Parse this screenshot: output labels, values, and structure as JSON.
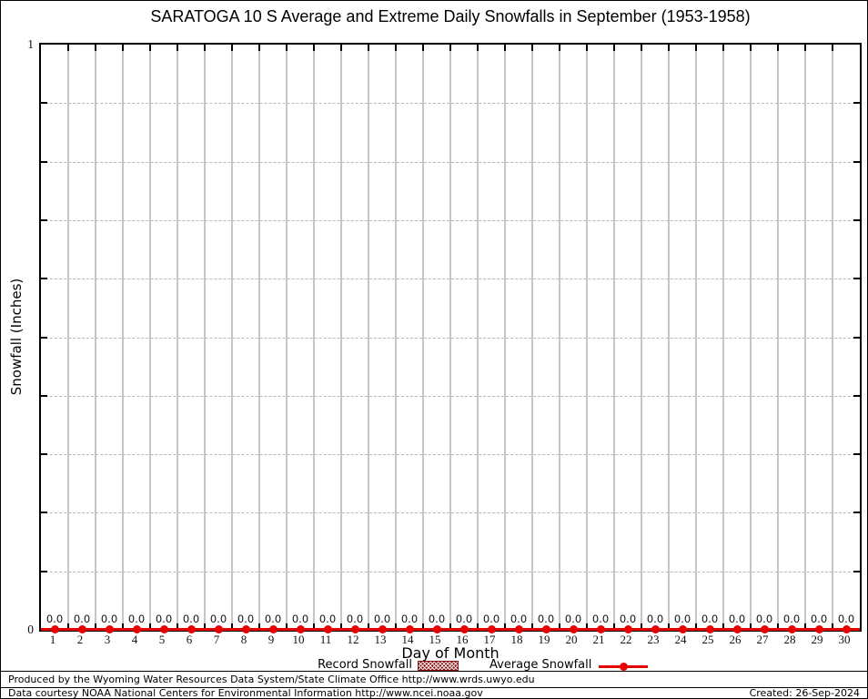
{
  "title": "SARATOGA 10 S Average and Extreme Daily Snowfalls in September (1953-1958)",
  "axis": {
    "y_top_label": "1",
    "y_bottom_label": "0"
  },
  "legend": {
    "record_label": "Record Snowfall",
    "average_label": "Average Snowfall"
  },
  "colors": {
    "average_line": "#e60000",
    "record_fill": "#8b1414",
    "grid_vertical": "#c6c6c6",
    "grid_horizontal": "#b8b8b8"
  },
  "footer": {
    "line1": "Produced by the Wyoming Water Resources Data System/State Climate Office http://www.wrds.uwyo.edu",
    "line2": "Data courtesy NOAA National Centers for Environmental Information http://www.ncei.noaa.gov",
    "created": "Created: 26-Sep-2024"
  },
  "chart_data": {
    "type": "line",
    "title": "SARATOGA 10 S Average and Extreme Daily Snowfalls in September (1953-1958)",
    "xlabel": "Day of Month",
    "ylabel": "Snowfall (Inches)",
    "x": [
      1,
      2,
      3,
      4,
      5,
      6,
      7,
      8,
      9,
      10,
      11,
      12,
      13,
      14,
      15,
      16,
      17,
      18,
      19,
      20,
      21,
      22,
      23,
      24,
      25,
      26,
      27,
      28,
      29,
      30
    ],
    "x_range": [
      0.5,
      30.5
    ],
    "ylim": [
      0,
      1
    ],
    "ytick_labels": [
      "0",
      "1"
    ],
    "y_minor_step": 0.1,
    "grid": true,
    "legend_position": "bottom",
    "point_label_format": "one-decimal",
    "series": [
      {
        "name": "Record Snowfall",
        "values": [
          0,
          0,
          0,
          0,
          0,
          0,
          0,
          0,
          0,
          0,
          0,
          0,
          0,
          0,
          0,
          0,
          0,
          0,
          0,
          0,
          0,
          0,
          0,
          0,
          0,
          0,
          0,
          0,
          0,
          0
        ]
      },
      {
        "name": "Average Snowfall",
        "values": [
          0,
          0,
          0,
          0,
          0,
          0,
          0,
          0,
          0,
          0,
          0,
          0,
          0,
          0,
          0,
          0,
          0,
          0,
          0,
          0,
          0,
          0,
          0,
          0,
          0,
          0,
          0,
          0,
          0,
          0
        ]
      }
    ]
  }
}
